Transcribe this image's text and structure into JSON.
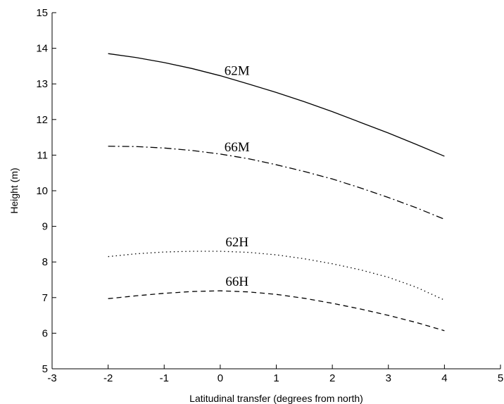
{
  "chart_data": {
    "type": "line",
    "title": "",
    "xlabel": "Latitudinal transfer (degrees from north)",
    "ylabel": "Height (m)",
    "xlim": [
      -3,
      5
    ],
    "ylim": [
      5,
      15
    ],
    "xticks": [
      "-3",
      "-2",
      "-1",
      "0",
      "1",
      "2",
      "3",
      "4",
      "5"
    ],
    "yticks": [
      "5",
      "6",
      "7",
      "8",
      "9",
      "10",
      "11",
      "12",
      "13",
      "14",
      "15"
    ],
    "grid": false,
    "legend": "none",
    "series": [
      {
        "name": "62M",
        "style": "solid",
        "x": [
          -2,
          -1.5,
          -1,
          -0.5,
          0,
          0.5,
          1,
          1.5,
          2,
          2.5,
          3,
          3.5,
          4
        ],
        "y": [
          13.85,
          13.74,
          13.6,
          13.43,
          13.23,
          13.0,
          12.76,
          12.5,
          12.22,
          11.92,
          11.62,
          11.3,
          10.97
        ]
      },
      {
        "name": "66M",
        "style": "dashdot",
        "x": [
          -2,
          -1.5,
          -1,
          -0.5,
          0,
          0.5,
          1,
          1.5,
          2,
          2.5,
          3,
          3.5,
          4
        ],
        "y": [
          11.25,
          11.24,
          11.2,
          11.13,
          11.03,
          10.9,
          10.73,
          10.54,
          10.33,
          10.08,
          9.81,
          9.52,
          9.2
        ]
      },
      {
        "name": "62H",
        "style": "dotted",
        "x": [
          -2,
          -1.5,
          -1,
          -0.5,
          0,
          0.5,
          1,
          1.5,
          2,
          2.5,
          3,
          3.5,
          4
        ],
        "y": [
          8.15,
          8.23,
          8.28,
          8.3,
          8.3,
          8.27,
          8.2,
          8.09,
          7.95,
          7.78,
          7.57,
          7.29,
          6.93
        ]
      },
      {
        "name": "66H",
        "style": "dashed",
        "x": [
          -2,
          -1.5,
          -1,
          -0.5,
          0,
          0.5,
          1,
          1.5,
          2,
          2.5,
          3,
          3.5,
          4
        ],
        "y": [
          6.97,
          7.05,
          7.12,
          7.17,
          7.19,
          7.16,
          7.09,
          6.98,
          6.84,
          6.68,
          6.5,
          6.3,
          6.07
        ]
      }
    ]
  }
}
